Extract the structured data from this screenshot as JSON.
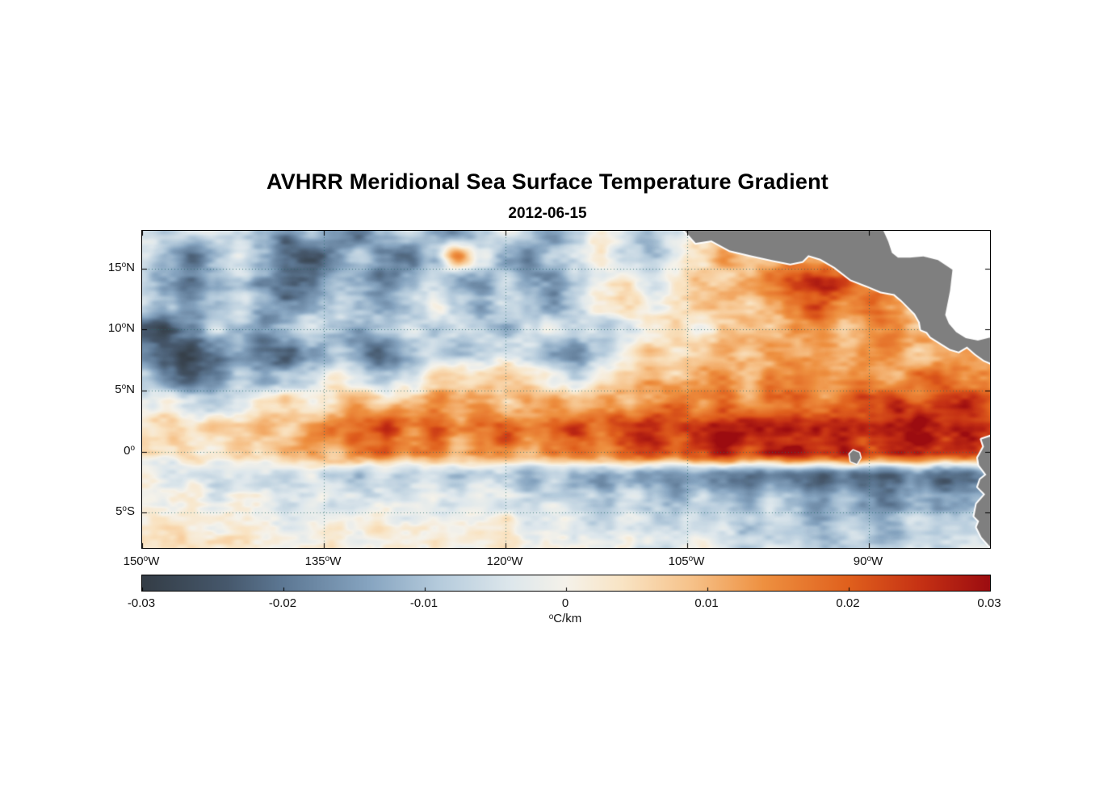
{
  "title": "AVHRR Meridional Sea Surface Temperature Gradient",
  "subtitle": "2012-06-15",
  "colorbar": {
    "unit": "°C/km",
    "unit_sup": "o",
    "unit_post": "C/km",
    "ticks": [
      {
        "v": -0.03,
        "label": "-0.03"
      },
      {
        "v": -0.02,
        "label": "-0.02"
      },
      {
        "v": -0.01,
        "label": "-0.01"
      },
      {
        "v": 0,
        "label": "0"
      },
      {
        "v": 0.01,
        "label": "0.01"
      },
      {
        "v": 0.02,
        "label": "0.02"
      },
      {
        "v": 0.03,
        "label": "0.03"
      }
    ]
  },
  "axes": {
    "x_ticks": [
      {
        "lon": -150,
        "pre": "150",
        "sup": "o",
        "post": "W"
      },
      {
        "lon": -135,
        "pre": "135",
        "sup": "o",
        "post": "W"
      },
      {
        "lon": -120,
        "pre": "120",
        "sup": "o",
        "post": "W"
      },
      {
        "lon": -105,
        "pre": "105",
        "sup": "o",
        "post": "W"
      },
      {
        "lon": -90,
        "pre": "90",
        "sup": "o",
        "post": "W"
      }
    ],
    "y_ticks": [
      {
        "lat": 15,
        "pre": "15",
        "sup": "o",
        "post": "N"
      },
      {
        "lat": 10,
        "pre": "10",
        "sup": "o",
        "post": "N"
      },
      {
        "lat": 5,
        "pre": "5",
        "sup": "o",
        "post": "N"
      },
      {
        "lat": 0,
        "pre": "0",
        "sup": "o",
        "post": ""
      },
      {
        "lat": -5,
        "pre": "5",
        "sup": "o",
        "post": "S"
      }
    ]
  },
  "chart_data": {
    "type": "heatmap",
    "title": "AVHRR Meridional Sea Surface Temperature Gradient",
    "date": "2012-06-15",
    "unit": "°C/km",
    "lon_range": [
      -150,
      -80
    ],
    "lat_range": [
      -7.9,
      18.1
    ],
    "value_range": [
      -0.03,
      0.03
    ],
    "grid_lines": {
      "lon": [
        -135,
        -120,
        -105,
        -90
      ],
      "lat": [
        15,
        10,
        5,
        0,
        -5
      ]
    },
    "land_color": "#7f7f7f",
    "colormap": [
      {
        "v": -0.03,
        "c": "#343d46"
      },
      {
        "v": -0.024,
        "c": "#46586c"
      },
      {
        "v": -0.02,
        "c": "#5d7894"
      },
      {
        "v": -0.014,
        "c": "#86a4c0"
      },
      {
        "v": -0.009,
        "c": "#b5cbdc"
      },
      {
        "v": -0.004,
        "c": "#dde7ec"
      },
      {
        "v": 0.0,
        "c": "#f5f2ea"
      },
      {
        "v": 0.004,
        "c": "#f9e4c4"
      },
      {
        "v": 0.009,
        "c": "#f6c188"
      },
      {
        "v": 0.014,
        "c": "#ee9040"
      },
      {
        "v": 0.02,
        "c": "#e0601d"
      },
      {
        "v": 0.025,
        "c": "#c63214"
      },
      {
        "v": 0.03,
        "c": "#9c0c10"
      }
    ],
    "grid": {
      "lon_start": -150,
      "lon_step": 2,
      "lat_start": 18,
      "lat_step": -2,
      "ncols": 36,
      "nrows": 14,
      "values": [
        [
          -0.006,
          -0.01,
          -0.006,
          -0.002,
          -0.008,
          -0.012,
          -0.018,
          -0.01,
          -0.016,
          -0.022,
          -0.014,
          -0.006,
          -0.012,
          -0.018,
          -0.01,
          -0.002,
          -0.008,
          -0.014,
          -0.006,
          0.0,
          -0.006,
          -0.012,
          -0.006,
          0.002,
          0.004,
          0.002,
          0.006,
          0.004,
          0.006,
          0.004,
          0.002,
          0.004,
          0.002,
          0.004,
          0.002,
          0.002
        ],
        [
          -0.004,
          -0.012,
          -0.02,
          -0.012,
          -0.004,
          -0.01,
          -0.022,
          -0.026,
          -0.016,
          -0.008,
          -0.018,
          -0.024,
          -0.01,
          0.016,
          -0.004,
          -0.012,
          -0.018,
          -0.01,
          -0.004,
          0.002,
          -0.006,
          -0.01,
          -0.004,
          0.006,
          0.012,
          0.006,
          0.01,
          0.014,
          0.01,
          0.016,
          0.01,
          0.006,
          0.008,
          0.006,
          0.004,
          0.004
        ],
        [
          -0.008,
          -0.014,
          -0.02,
          -0.014,
          -0.008,
          -0.016,
          -0.024,
          -0.018,
          -0.01,
          -0.014,
          -0.02,
          -0.012,
          -0.006,
          -0.012,
          -0.016,
          -0.008,
          -0.014,
          -0.018,
          -0.01,
          -0.002,
          0.004,
          -0.004,
          0.002,
          0.008,
          0.006,
          0.012,
          0.018,
          0.024,
          0.028,
          0.022,
          0.014,
          0.01,
          0.012,
          0.008,
          0.006,
          0.006
        ],
        [
          -0.004,
          -0.01,
          -0.016,
          -0.01,
          -0.004,
          -0.012,
          -0.018,
          -0.012,
          -0.006,
          -0.01,
          -0.014,
          -0.008,
          -0.002,
          -0.008,
          -0.012,
          -0.006,
          -0.01,
          -0.014,
          -0.006,
          0.002,
          0.006,
          0.0,
          0.004,
          0.006,
          0.01,
          0.006,
          0.012,
          0.018,
          0.022,
          0.016,
          0.02,
          0.012,
          0.008,
          0.006,
          0.008,
          0.006
        ],
        [
          -0.022,
          -0.026,
          -0.016,
          -0.008,
          -0.012,
          -0.018,
          -0.012,
          -0.006,
          -0.01,
          -0.014,
          -0.008,
          -0.004,
          -0.008,
          -0.004,
          -0.008,
          -0.012,
          -0.006,
          -0.002,
          -0.006,
          -0.01,
          -0.004,
          0.002,
          0.006,
          0.002,
          0.006,
          0.01,
          0.006,
          0.012,
          0.016,
          0.01,
          0.014,
          0.018,
          0.01,
          0.006,
          0.008,
          0.01
        ],
        [
          -0.016,
          -0.022,
          -0.028,
          -0.02,
          -0.012,
          -0.02,
          -0.026,
          -0.018,
          -0.01,
          -0.016,
          -0.022,
          -0.014,
          -0.006,
          -0.01,
          -0.006,
          -0.002,
          -0.008,
          -0.012,
          -0.016,
          -0.008,
          0.0,
          0.006,
          0.002,
          0.008,
          0.012,
          0.008,
          0.014,
          0.01,
          0.012,
          0.008,
          0.012,
          0.016,
          0.01,
          0.012,
          0.014,
          0.01
        ],
        [
          -0.01,
          -0.018,
          -0.024,
          -0.016,
          -0.008,
          -0.014,
          -0.01,
          -0.004,
          0.002,
          -0.006,
          -0.01,
          -0.004,
          0.004,
          0.008,
          0.004,
          0.01,
          0.004,
          0.0,
          -0.006,
          0.002,
          0.008,
          0.012,
          0.008,
          0.012,
          0.016,
          0.01,
          0.014,
          0.018,
          0.012,
          0.014,
          0.016,
          0.012,
          0.018,
          0.022,
          0.016,
          0.012
        ],
        [
          -0.002,
          0.002,
          -0.006,
          -0.01,
          -0.004,
          0.004,
          0.008,
          0.002,
          0.006,
          0.012,
          0.006,
          0.01,
          0.014,
          0.008,
          0.012,
          0.008,
          0.012,
          0.016,
          0.01,
          0.014,
          0.01,
          0.014,
          0.018,
          0.012,
          0.016,
          0.012,
          0.016,
          0.02,
          0.014,
          0.018,
          0.022,
          0.026,
          0.018,
          0.022,
          0.026,
          0.02
        ],
        [
          0.002,
          0.006,
          0.004,
          0.008,
          0.006,
          0.01,
          0.008,
          0.012,
          0.016,
          0.02,
          0.024,
          0.016,
          0.02,
          0.014,
          0.018,
          0.022,
          0.016,
          0.02,
          0.024,
          0.018,
          0.024,
          0.028,
          0.022,
          0.026,
          0.03,
          0.026,
          0.028,
          0.024,
          0.028,
          0.03,
          0.026,
          0.028,
          0.03,
          0.026,
          0.028,
          0.024
        ],
        [
          0.004,
          0.002,
          0.006,
          0.004,
          0.008,
          0.006,
          0.01,
          0.014,
          0.01,
          0.016,
          0.02,
          0.014,
          0.016,
          0.01,
          0.014,
          0.018,
          0.012,
          0.016,
          0.02,
          0.016,
          0.022,
          0.026,
          0.02,
          0.024,
          0.028,
          0.022,
          0.026,
          0.03,
          0.024,
          0.028,
          0.022,
          0.026,
          0.028,
          0.024,
          0.026,
          0.022
        ],
        [
          0.0,
          -0.004,
          -0.002,
          -0.006,
          -0.002,
          -0.006,
          -0.01,
          -0.004,
          -0.008,
          -0.012,
          -0.006,
          -0.01,
          -0.008,
          -0.012,
          -0.006,
          -0.01,
          -0.014,
          -0.008,
          -0.012,
          -0.016,
          -0.01,
          -0.016,
          -0.02,
          -0.014,
          -0.018,
          -0.024,
          -0.016,
          -0.02,
          -0.026,
          -0.018,
          -0.022,
          -0.026,
          -0.018,
          -0.024,
          -0.02,
          -0.016
        ],
        [
          0.002,
          0.0,
          0.002,
          -0.002,
          0.0,
          -0.002,
          -0.004,
          0.0,
          -0.004,
          -0.006,
          -0.002,
          -0.004,
          -0.002,
          -0.006,
          -0.002,
          -0.004,
          -0.008,
          -0.004,
          -0.006,
          -0.01,
          -0.004,
          -0.008,
          -0.012,
          -0.006,
          -0.01,
          -0.014,
          -0.008,
          -0.012,
          -0.016,
          -0.01,
          -0.014,
          -0.018,
          -0.01,
          -0.014,
          -0.012,
          -0.008
        ],
        [
          0.002,
          0.004,
          0.002,
          0.0,
          0.002,
          0.0,
          -0.002,
          0.002,
          0.0,
          -0.002,
          0.002,
          0.0,
          0.002,
          -0.002,
          0.0,
          0.002,
          -0.002,
          0.0,
          -0.004,
          -0.006,
          -0.002,
          -0.006,
          -0.008,
          -0.004,
          -0.006,
          -0.01,
          -0.006,
          -0.008,
          -0.012,
          -0.008,
          -0.01,
          -0.012,
          -0.006,
          -0.01,
          -0.008,
          -0.006
        ],
        [
          0.004,
          0.002,
          0.004,
          0.002,
          0.004,
          0.002,
          0.0,
          0.002,
          0.004,
          0.0,
          0.002,
          0.004,
          0.002,
          0.0,
          0.002,
          0.004,
          0.0,
          0.002,
          -0.002,
          -0.004,
          0.0,
          -0.004,
          -0.006,
          -0.002,
          -0.004,
          -0.008,
          -0.004,
          -0.006,
          -0.008,
          -0.006,
          -0.008,
          -0.01,
          -0.004,
          -0.008,
          -0.006,
          -0.004
        ]
      ]
    },
    "land_polygons": {
      "central_america": [
        [
          -105.2,
          18.1
        ],
        [
          -104.3,
          17.1
        ],
        [
          -103.0,
          17.3
        ],
        [
          -101.5,
          16.5
        ],
        [
          -99.8,
          16.1
        ],
        [
          -98.0,
          15.7
        ],
        [
          -96.5,
          15.4
        ],
        [
          -95.5,
          15.6
        ],
        [
          -95.0,
          16.1
        ],
        [
          -94.0,
          15.8
        ],
        [
          -92.8,
          15.1
        ],
        [
          -91.5,
          14.1
        ],
        [
          -90.2,
          13.6
        ],
        [
          -89.0,
          13.1
        ],
        [
          -87.9,
          12.9
        ],
        [
          -87.3,
          12.4
        ],
        [
          -86.8,
          11.9
        ],
        [
          -86.2,
          11.3
        ],
        [
          -85.8,
          10.6
        ],
        [
          -85.7,
          10.0
        ],
        [
          -85.2,
          9.8
        ],
        [
          -84.9,
          9.4
        ],
        [
          -84.1,
          8.9
        ],
        [
          -83.3,
          8.4
        ],
        [
          -82.6,
          8.2
        ],
        [
          -81.9,
          8.6
        ],
        [
          -81.2,
          8.0
        ],
        [
          -80.5,
          7.5
        ],
        [
          -79.8,
          7.2
        ],
        [
          -79.8,
          9.4
        ],
        [
          -81.0,
          9.1
        ],
        [
          -82.0,
          9.3
        ],
        [
          -82.8,
          9.8
        ],
        [
          -83.4,
          10.5
        ],
        [
          -83.7,
          11.2
        ],
        [
          -83.5,
          12.2
        ],
        [
          -83.3,
          13.2
        ],
        [
          -83.1,
          14.9
        ],
        [
          -84.3,
          15.7
        ],
        [
          -85.5,
          16.0
        ],
        [
          -86.6,
          15.9
        ],
        [
          -87.6,
          15.9
        ],
        [
          -88.1,
          16.3
        ],
        [
          -88.4,
          17.2
        ],
        [
          -88.8,
          18.1
        ]
      ],
      "caribbean_mask": [
        [
          -88.8,
          18.2
        ],
        [
          -88.4,
          17.2
        ],
        [
          -88.1,
          16.3
        ],
        [
          -87.6,
          15.9
        ],
        [
          -86.6,
          15.9
        ],
        [
          -85.5,
          16.0
        ],
        [
          -84.3,
          15.7
        ],
        [
          -83.1,
          14.9
        ],
        [
          -83.3,
          13.2
        ],
        [
          -83.5,
          12.2
        ],
        [
          -83.7,
          11.2
        ],
        [
          -83.4,
          10.5
        ],
        [
          -82.8,
          9.8
        ],
        [
          -82.0,
          9.3
        ],
        [
          -81.0,
          9.1
        ],
        [
          -79.8,
          9.4
        ],
        [
          -79.8,
          18.2
        ]
      ],
      "south_america": [
        [
          -79.8,
          1.3
        ],
        [
          -80.7,
          1.0
        ],
        [
          -80.5,
          0.4
        ],
        [
          -81.0,
          -0.5
        ],
        [
          -80.9,
          -1.1
        ],
        [
          -80.3,
          -1.9
        ],
        [
          -80.8,
          -2.3
        ],
        [
          -81.0,
          -2.9
        ],
        [
          -80.4,
          -3.5
        ],
        [
          -81.1,
          -4.3
        ],
        [
          -81.3,
          -5.3
        ],
        [
          -80.9,
          -5.7
        ],
        [
          -81.1,
          -6.2
        ],
        [
          -80.7,
          -7.0
        ],
        [
          -79.8,
          -8.0
        ]
      ],
      "galapagos": [
        [
          -91.6,
          -0.2
        ],
        [
          -91.3,
          0.1
        ],
        [
          -90.8,
          -0.1
        ],
        [
          -90.7,
          -0.5
        ],
        [
          -91.0,
          -1.0
        ],
        [
          -91.5,
          -0.8
        ]
      ]
    }
  }
}
